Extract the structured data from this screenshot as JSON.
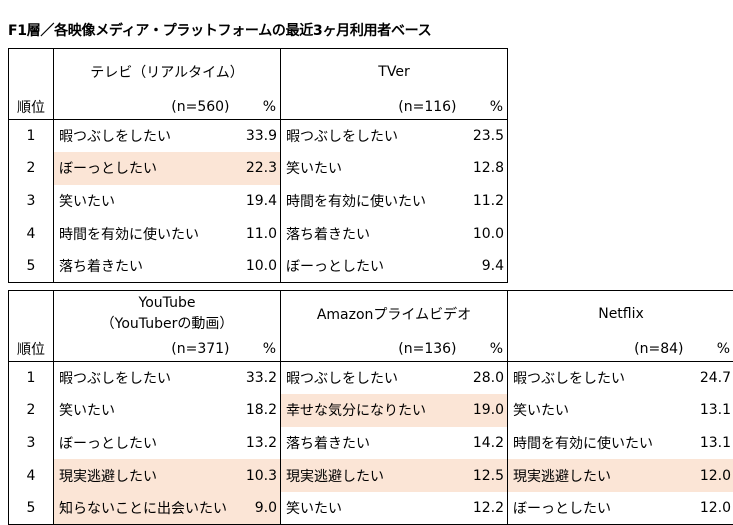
{
  "title": "F1層／各映像メディア・プラットフォームの最近3ヶ月利用者ベース",
  "rank_label": "順位",
  "percent_label": "%",
  "highlight_color": "#fbe5d6",
  "table1": {
    "platforms": [
      {
        "name": "テレビ（リアルタイム）",
        "n": "(n=560)",
        "rows": [
          {
            "label": "暇つぶしをしたい",
            "value": "33.9",
            "highlight": false
          },
          {
            "label": "ぼーっとしたい",
            "value": "22.3",
            "highlight": true
          },
          {
            "label": "笑いたい",
            "value": "19.4",
            "highlight": false
          },
          {
            "label": "時間を有効に使いたい",
            "value": "11.0",
            "highlight": false
          },
          {
            "label": "落ち着きたい",
            "value": "10.0",
            "highlight": false
          }
        ]
      },
      {
        "name": "TVer",
        "n": "(n=116)",
        "rows": [
          {
            "label": "暇つぶしをしたい",
            "value": "23.5",
            "highlight": false
          },
          {
            "label": "笑いたい",
            "value": "12.8",
            "highlight": false
          },
          {
            "label": "時間を有効に使いたい",
            "value": "11.2",
            "highlight": false
          },
          {
            "label": "落ち着きたい",
            "value": "10.0",
            "highlight": false
          },
          {
            "label": "ぼーっとしたい",
            "value": "9.4",
            "highlight": false
          }
        ]
      }
    ]
  },
  "table2": {
    "platforms": [
      {
        "name": "YouTube",
        "name2": "（YouTuberの動画）",
        "n": "(n=371)",
        "rows": [
          {
            "label": "暇つぶしをしたい",
            "value": "33.2",
            "highlight": false
          },
          {
            "label": "笑いたい",
            "value": "18.2",
            "highlight": false
          },
          {
            "label": "ぼーっとしたい",
            "value": "13.2",
            "highlight": false
          },
          {
            "label": "現実逃避したい",
            "value": "10.3",
            "highlight": true
          },
          {
            "label": "知らないことに出会いたい",
            "value": "9.0",
            "highlight": true
          }
        ]
      },
      {
        "name": "Amazonプライムビデオ",
        "n": "(n=136)",
        "rows": [
          {
            "label": "暇つぶしをしたい",
            "value": "28.0",
            "highlight": false
          },
          {
            "label": "幸せな気分になりたい",
            "value": "19.0",
            "highlight": true
          },
          {
            "label": "落ち着きたい",
            "value": "14.2",
            "highlight": false
          },
          {
            "label": "現実逃避したい",
            "value": "12.5",
            "highlight": true
          },
          {
            "label": "笑いたい",
            "value": "12.2",
            "highlight": false
          }
        ]
      },
      {
        "name": "Netflix",
        "n": "(n=84)",
        "rows": [
          {
            "label": "暇つぶしをしたい",
            "value": "24.7",
            "highlight": false
          },
          {
            "label": "笑いたい",
            "value": "13.1",
            "highlight": false
          },
          {
            "label": "時間を有効に使いたい",
            "value": "13.1",
            "highlight": false
          },
          {
            "label": "現実逃避したい",
            "value": "12.0",
            "highlight": true
          },
          {
            "label": "ぼーっとしたい",
            "value": "12.0",
            "highlight": false
          }
        ]
      }
    ]
  },
  "ranks": [
    "1",
    "2",
    "3",
    "4",
    "5"
  ]
}
